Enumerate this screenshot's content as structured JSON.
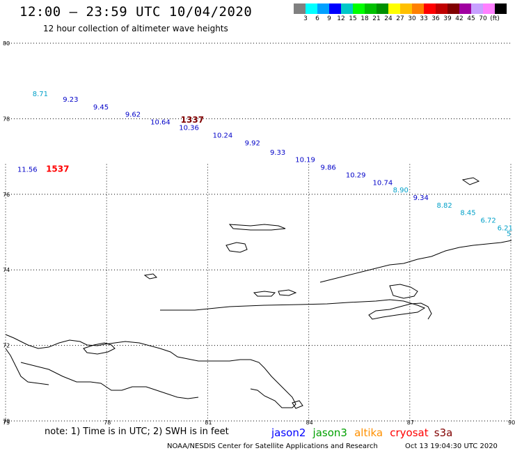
{
  "header": {
    "title": "12:00 – 23:59 UTC 10/04/2020",
    "subtitle": "12 hour collection of altimeter wave heights"
  },
  "scale": {
    "colors": [
      "#808080",
      "#00ffff",
      "#00a0ff",
      "#0000ff",
      "#00c8c8",
      "#00ff00",
      "#00c000",
      "#009000",
      "#ffff00",
      "#ffc000",
      "#ff8000",
      "#ff0000",
      "#c00000",
      "#800000",
      "#a000a0",
      "#c8a0ff",
      "#ff80ff",
      "#000000"
    ],
    "labels": [
      "3",
      "6",
      "9",
      "12",
      "15",
      "18",
      "21",
      "24",
      "27",
      "30",
      "33",
      "36",
      "39",
      "42",
      "45",
      "70",
      "(ft)"
    ]
  },
  "map": {
    "lat_range": [
      70,
      80
    ],
    "lon_range": [
      75,
      90
    ],
    "lat_ticks": [
      "70",
      "72",
      "74",
      "76",
      "78",
      "80"
    ],
    "lon_ticks": [
      "75",
      "78",
      "81",
      "84",
      "87",
      "90"
    ],
    "gridlines": true
  },
  "observations": [
    {
      "lon": 75.8,
      "lat": 78.6,
      "value": "8.71",
      "color": "#00a0c8"
    },
    {
      "lon": 76.7,
      "lat": 78.45,
      "value": "9.23",
      "color": "#0000c8"
    },
    {
      "lon": 77.6,
      "lat": 78.25,
      "value": "9.45",
      "color": "#0000c8"
    },
    {
      "lon": 78.55,
      "lat": 78.05,
      "value": "9.62",
      "color": "#0000c8"
    },
    {
      "lon": 79.3,
      "lat": 77.85,
      "value": "10.64",
      "color": "#0000c8"
    },
    {
      "lon": 80.15,
      "lat": 77.7,
      "value": "10.36",
      "color": "#0000c8"
    },
    {
      "lon": 80.2,
      "lat": 77.9,
      "value": "1337",
      "color": "#800000"
    },
    {
      "lon": 81.15,
      "lat": 77.5,
      "value": "10.24",
      "color": "#0000c8"
    },
    {
      "lon": 82.1,
      "lat": 77.3,
      "value": "9.92",
      "color": "#0000c8"
    },
    {
      "lon": 82.85,
      "lat": 77.05,
      "value": "9.33",
      "color": "#0000c8"
    },
    {
      "lon": 83.6,
      "lat": 76.85,
      "value": "10.19",
      "color": "#0000c8"
    },
    {
      "lon": 84.35,
      "lat": 76.65,
      "value": "9.86",
      "color": "#0000c8"
    },
    {
      "lon": 85.1,
      "lat": 76.45,
      "value": "10.29",
      "color": "#0000c8"
    },
    {
      "lon": 85.9,
      "lat": 76.25,
      "value": "10.74",
      "color": "#0000c8"
    },
    {
      "lon": 86.5,
      "lat": 76.05,
      "value": "8.90",
      "color": "#00a0c8"
    },
    {
      "lon": 87.1,
      "lat": 75.85,
      "value": "9.34",
      "color": "#0000c8"
    },
    {
      "lon": 87.8,
      "lat": 75.65,
      "value": "8.82",
      "color": "#00a0c8"
    },
    {
      "lon": 88.5,
      "lat": 75.45,
      "value": "8.45",
      "color": "#00a0c8"
    },
    {
      "lon": 89.1,
      "lat": 75.25,
      "value": "6.72",
      "color": "#00a0c8"
    },
    {
      "lon": 89.6,
      "lat": 75.05,
      "value": "6.21",
      "color": "#00a0c8"
    },
    {
      "lon": 90.2,
      "lat": 74.9,
      "value": "5",
      "color": "#00a0c8"
    },
    {
      "lon": 75.35,
      "lat": 76.6,
      "value": "11.56",
      "color": "#0000c8"
    },
    {
      "lon": 76.2,
      "lat": 76.6,
      "value": "1537",
      "color": "#ff0000"
    }
  ],
  "note": {
    "text": "note: 1) Time is in UTC; 2) SWH is in feet",
    "sats": [
      {
        "name": "jason2",
        "color": "#0000ff"
      },
      {
        "name": "jason3",
        "color": "#00a000"
      },
      {
        "name": "altika",
        "color": "#ff9000"
      },
      {
        "name": "cryosat",
        "color": "#ff0000"
      },
      {
        "name": "s3a",
        "color": "#800000"
      }
    ]
  },
  "footer": {
    "left": "NOAA/NESDIS Center for Satellite Applications and Research",
    "right": "Oct 13 19:04:30 UTC 2020"
  }
}
